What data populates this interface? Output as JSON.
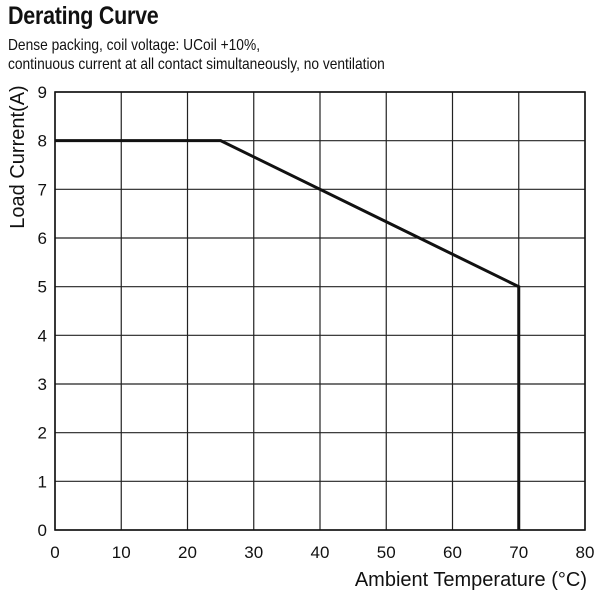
{
  "chart_data": {
    "type": "line",
    "title": "Derating Curve",
    "subtitle_lines": [
      "Dense packing, coil voltage: UCoil +10%,",
      "continuous current at all contact simultaneously, no ventilation"
    ],
    "xlabel": "Ambient Temperature (°C)",
    "ylabel": "Load Current(A)",
    "xlim": [
      0,
      80
    ],
    "ylim": [
      0,
      9
    ],
    "x_ticks": [
      0,
      10,
      20,
      30,
      40,
      50,
      60,
      70,
      80
    ],
    "y_ticks": [
      0,
      1,
      2,
      3,
      4,
      5,
      6,
      7,
      8,
      9
    ],
    "grid": true,
    "series": [
      {
        "x": [
          0,
          25,
          70,
          70
        ],
        "y": [
          8,
          8,
          5,
          0
        ]
      }
    ]
  }
}
